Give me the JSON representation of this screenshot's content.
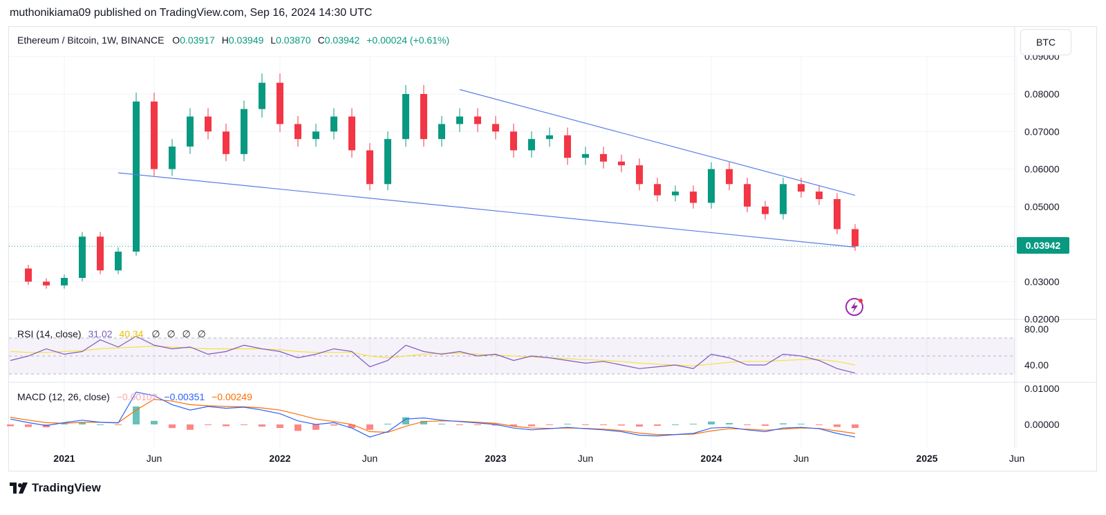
{
  "header": {
    "publisher_line": "muthonikiama09 published on TradingView.com, Sep 16, 2024 14:30 UTC"
  },
  "legend": {
    "symbol": "Ethereum / Bitcoin, 1W, BINANCE",
    "open_label": "O",
    "open": "0.03917",
    "high_label": "H",
    "high": "0.03949",
    "low_label": "L",
    "low": "0.03870",
    "close_label": "C",
    "close": "0.03942",
    "change": "+0.00024 (+0.61%)"
  },
  "currency_button": "BTC",
  "last_price": "0.03942",
  "rsi_legend": {
    "label": "RSI (14, close)",
    "rsi": "31.02",
    "ma": "40.34",
    "extras": [
      "∅",
      "∅",
      "∅",
      "∅"
    ]
  },
  "macd_legend": {
    "label": "MACD (12, 26, close)",
    "hist": "−0.00102",
    "macd": "−0.00351",
    "signal": "−0.00249"
  },
  "footer": {
    "brand": "TradingView"
  },
  "colors": {
    "up": "#089981",
    "down": "#f23645",
    "trendline": "#5b7ce8",
    "rsi": "#7e57c2",
    "rsi_ma": "#f5e23d",
    "macd": "#2962ff",
    "signal": "#ff6d00"
  },
  "chart_data": [
    {
      "type": "candlestick",
      "panel": "price",
      "y_axis": {
        "ticks": [
          "0.09000",
          "0.08000",
          "0.07000",
          "0.06000",
          "0.05000",
          "0.03000",
          "0.02000"
        ],
        "range": [
          0.02,
          0.09
        ]
      },
      "x_axis": {
        "ticks": [
          "2021",
          "Jun",
          "2022",
          "Jun",
          "2023",
          "Jun",
          "2024",
          "Jun",
          "2025",
          "Jun"
        ]
      },
      "trendlines": [
        {
          "name": "upper",
          "points": [
            [
              "2022-11",
              0.0812
            ],
            [
              "2024-09",
              0.053
            ]
          ]
        },
        {
          "name": "lower",
          "points": [
            [
              "2021-04",
              0.059
            ],
            [
              "2024-09",
              0.0392
            ]
          ]
        }
      ],
      "close_points": [
        [
          "2020-10",
          0.0335
        ],
        [
          "2020-11",
          0.03
        ],
        [
          "2020-12",
          0.029
        ],
        [
          "2021-01",
          0.031
        ],
        [
          "2021-02",
          0.042
        ],
        [
          "2021-03",
          0.033
        ],
        [
          "2021-04",
          0.038
        ],
        [
          "2021-05",
          0.078
        ],
        [
          "2021-06",
          0.06
        ],
        [
          "2021-07",
          0.066
        ],
        [
          "2021-08",
          0.074
        ],
        [
          "2021-09",
          0.07
        ],
        [
          "2021-10",
          0.064
        ],
        [
          "2021-11",
          0.076
        ],
        [
          "2021-12",
          0.083
        ],
        [
          "2022-01",
          0.072
        ],
        [
          "2022-02",
          0.068
        ],
        [
          "2022-03",
          0.07
        ],
        [
          "2022-04",
          0.074
        ],
        [
          "2022-05",
          0.065
        ],
        [
          "2022-06",
          0.056
        ],
        [
          "2022-07",
          0.068
        ],
        [
          "2022-08",
          0.08
        ],
        [
          "2022-09",
          0.068
        ],
        [
          "2022-10",
          0.072
        ],
        [
          "2022-11",
          0.074
        ],
        [
          "2022-12",
          0.072
        ],
        [
          "2023-01",
          0.07
        ],
        [
          "2023-02",
          0.065
        ],
        [
          "2023-03",
          0.068
        ],
        [
          "2023-04",
          0.069
        ],
        [
          "2023-05",
          0.063
        ],
        [
          "2023-06",
          0.064
        ],
        [
          "2023-07",
          0.062
        ],
        [
          "2023-08",
          0.061
        ],
        [
          "2023-09",
          0.056
        ],
        [
          "2023-10",
          0.053
        ],
        [
          "2023-11",
          0.054
        ],
        [
          "2023-12",
          0.051
        ],
        [
          "2024-01",
          0.06
        ],
        [
          "2024-02",
          0.056
        ],
        [
          "2024-03",
          0.05
        ],
        [
          "2024-04",
          0.048
        ],
        [
          "2024-05",
          0.056
        ],
        [
          "2024-06",
          0.054
        ],
        [
          "2024-07",
          0.052
        ],
        [
          "2024-08",
          0.044
        ],
        [
          "2024-09",
          0.0394
        ]
      ]
    },
    {
      "type": "line",
      "panel": "rsi",
      "y_axis": {
        "ticks": [
          "80.00",
          "40.00"
        ],
        "band": [
          30,
          70
        ]
      },
      "series": [
        {
          "name": "RSI (14, close)",
          "values": [
            45,
            50,
            58,
            52,
            55,
            68,
            60,
            72,
            62,
            58,
            60,
            52,
            55,
            62,
            58,
            55,
            48,
            52,
            58,
            55,
            38,
            45,
            62,
            55,
            52,
            55,
            50,
            52,
            45,
            50,
            48,
            45,
            42,
            44,
            40,
            36,
            38,
            40,
            36,
            52,
            48,
            40,
            40,
            52,
            50,
            45,
            36,
            31
          ]
        },
        {
          "name": "RSI MA",
          "values": [
            55,
            54,
            54,
            55,
            56,
            58,
            59,
            60,
            61,
            60,
            59,
            58,
            58,
            58,
            58,
            57,
            55,
            54,
            54,
            54,
            50,
            48,
            50,
            52,
            53,
            53,
            52,
            51,
            50,
            49,
            48,
            47,
            46,
            45,
            44,
            42,
            41,
            40,
            39,
            41,
            43,
            44,
            44,
            45,
            46,
            46,
            44,
            40
          ]
        }
      ]
    },
    {
      "type": "bar",
      "panel": "macd",
      "y_axis": {
        "ticks": [
          "0.01000",
          "0.00000"
        ]
      },
      "series": [
        {
          "name": "MACD",
          "values": [
            0.0015,
            0.0005,
            -0.0003,
            0.0005,
            0.0012,
            0.0006,
            0.0004,
            0.009,
            0.008,
            0.0055,
            0.004,
            0.005,
            0.0045,
            0.0048,
            0.004,
            0.003,
            0.001,
            0.0,
            0.0005,
            -0.001,
            -0.0035,
            -0.002,
            0.0015,
            0.0018,
            0.0012,
            0.0008,
            0.0004,
            0.0,
            -0.001,
            -0.0015,
            -0.0012,
            -0.0008,
            -0.0012,
            -0.0015,
            -0.002,
            -0.003,
            -0.0032,
            -0.0028,
            -0.0025,
            -0.001,
            -0.0008,
            -0.0015,
            -0.002,
            -0.001,
            -0.0008,
            -0.0012,
            -0.0025,
            -0.0035
          ]
        },
        {
          "name": "Signal",
          "values": [
            0.002,
            0.0012,
            0.0005,
            0.0003,
            0.0006,
            0.0006,
            0.0005,
            0.004,
            0.007,
            0.0065,
            0.0055,
            0.0052,
            0.005,
            0.0049,
            0.0046,
            0.004,
            0.0028,
            0.0015,
            0.0008,
            0.0,
            -0.002,
            -0.0022,
            -0.0005,
            0.0008,
            0.001,
            0.0009,
            0.0006,
            0.0003,
            -0.0005,
            -0.001,
            -0.0011,
            -0.001,
            -0.0011,
            -0.0013,
            -0.0017,
            -0.0024,
            -0.0028,
            -0.0028,
            -0.0027,
            -0.0018,
            -0.0012,
            -0.0013,
            -0.0016,
            -0.0013,
            -0.001,
            -0.0011,
            -0.0018,
            -0.0025
          ]
        }
      ]
    }
  ]
}
